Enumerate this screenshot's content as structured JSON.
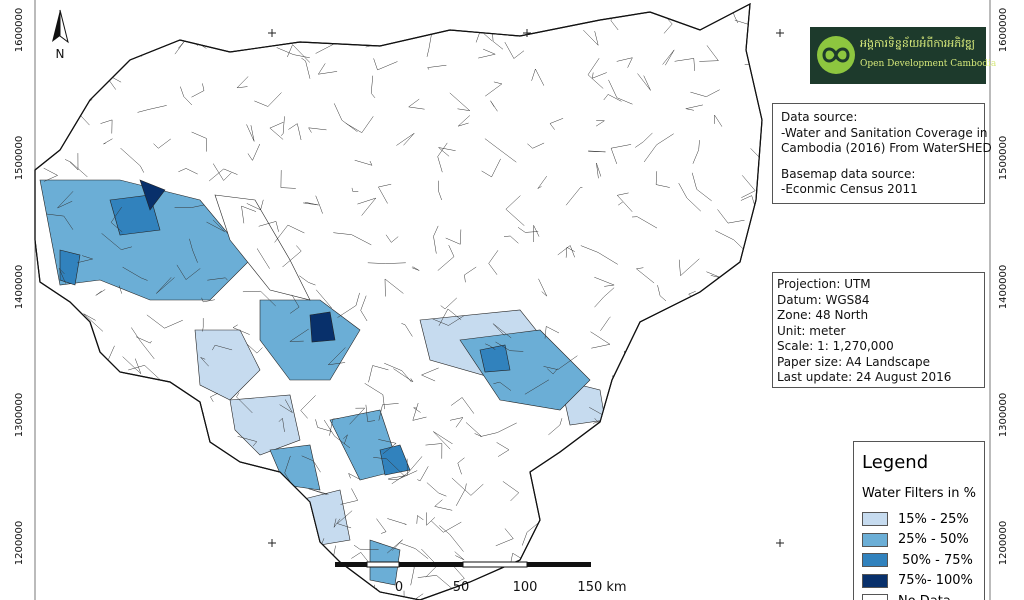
{
  "grid_labels": {
    "left": [
      "1600000",
      "1500000",
      "1400000",
      "1300000",
      "1200000"
    ],
    "right": [
      "1600000",
      "1500000",
      "1400000",
      "1300000",
      "1200000"
    ]
  },
  "north_arrow": {
    "label": "N"
  },
  "logo": {
    "khmer": "អង្គការទិន្នន័យអំពីការអភិវឌ្ឍ",
    "name": "Open Development Cambodia"
  },
  "data_source": {
    "lines": [
      "Data source:",
      "-Water and Sanitation Coverage in",
      "Cambodia (2016) From WaterSHED",
      "Basemap data source:",
      "-Econmic Census 2011"
    ]
  },
  "projection": {
    "lines": [
      "Projection: UTM",
      "Datum: WGS84",
      "Zone: 48 North",
      "Unit: meter",
      "Scale: 1: 1,270,000",
      "Paper size: A4 Landscape",
      "Last update: 24 August 2016"
    ]
  },
  "scale_bar": {
    "labels": [
      "0",
      "50",
      "100",
      "150 km"
    ]
  },
  "legend": {
    "title": "Legend",
    "subtitle": "Water Filters in %",
    "items": [
      {
        "label": "15% - 25%",
        "color": "#c6dbef"
      },
      {
        "label": "25% - 50%",
        "color": "#6baed6"
      },
      {
        "label": " 50% - 75%",
        "color": "#3182bd"
      },
      {
        "label": "75%- 100%",
        "color": "#08306b"
      },
      {
        "label": "No Data",
        "color": "#ffffff"
      }
    ]
  }
}
